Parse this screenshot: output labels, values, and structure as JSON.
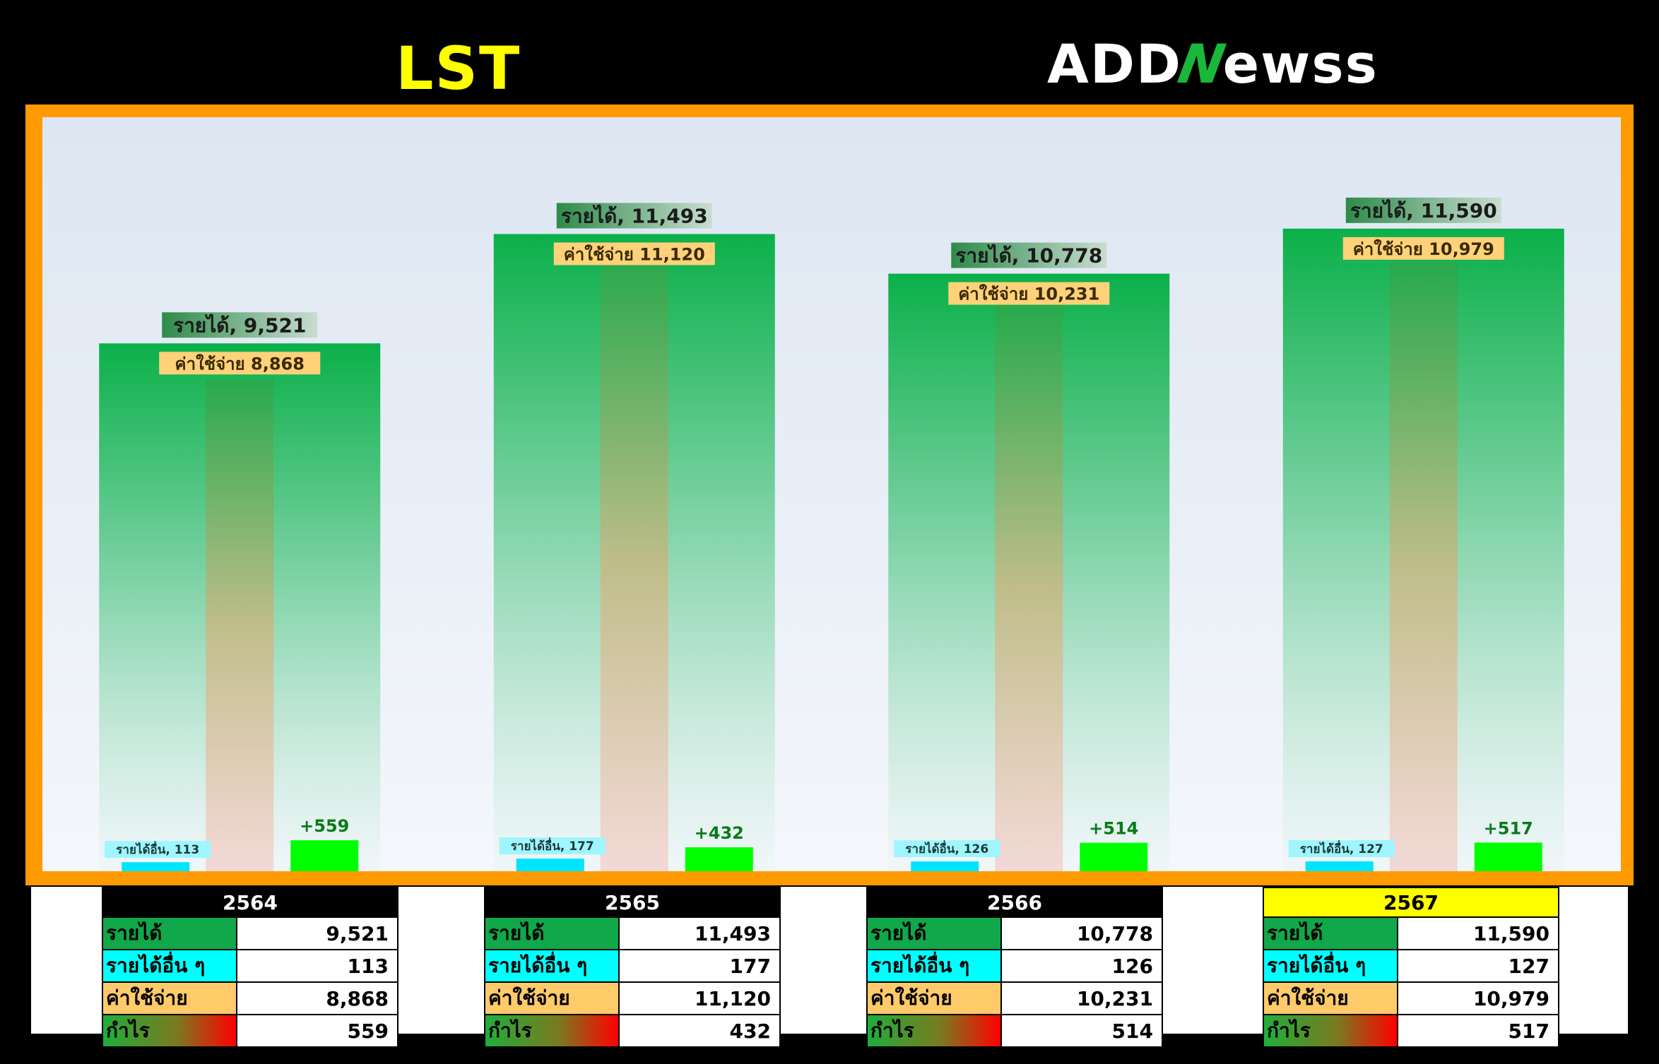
{
  "title": "LST",
  "logo": {
    "prefix": "ADD",
    "n": "N",
    "suffix": "ewss"
  },
  "colors": {
    "title": "#ffff00",
    "frame": "#ff9a00",
    "revenue": "#10a84a",
    "other_income": "#00ffff",
    "expense": "#ffca6a",
    "profit": "#00ff00",
    "highlight_year": "#ffff00"
  },
  "chart_data": {
    "type": "bar",
    "categories": [
      "2564",
      "2565",
      "2566",
      "2567"
    ],
    "series": [
      {
        "name": "รายได้",
        "values": [
          9521,
          11493,
          10778,
          11590
        ]
      },
      {
        "name": "รายได้อื่น ๆ",
        "values": [
          113,
          177,
          126,
          127
        ]
      },
      {
        "name": "ค่าใช้จ่าย",
        "values": [
          8868,
          11120,
          10231,
          10979
        ]
      },
      {
        "name": "กำไร",
        "values": [
          559,
          432,
          514,
          517
        ]
      }
    ],
    "labels": {
      "revenue": [
        "รายได้, 9,521",
        "รายได้, 11,493",
        "รายได้, 10,778",
        "รายได้, 11,590"
      ],
      "other": [
        "รายได้อื่น, 113",
        "รายได้อื่น, 177",
        "รายได้อื่น, 126",
        "รายได้อื่น, 127"
      ],
      "expense": [
        "ค่าใช้จ่าย 8,868",
        "ค่าใช้จ่าย 11,120",
        "ค่าใช้จ่าย 10,231",
        "ค่าใช้จ่าย 10,979"
      ],
      "profit": [
        "+559",
        "+432",
        "+514",
        "+517"
      ]
    },
    "ylim": [
      0,
      13600
    ],
    "grid": false
  },
  "tables": [
    {
      "year": "2564",
      "highlight": false,
      "rows": [
        {
          "label": "รายได้",
          "value": "9,521"
        },
        {
          "label": "รายได้อื่น ๆ",
          "value": "113"
        },
        {
          "label": "ค่าใช้จ่าย",
          "value": "8,868"
        },
        {
          "label": "กำไร",
          "value": "559"
        }
      ]
    },
    {
      "year": "2565",
      "highlight": false,
      "rows": [
        {
          "label": "รายได้",
          "value": "11,493"
        },
        {
          "label": "รายได้อื่น ๆ",
          "value": "177"
        },
        {
          "label": "ค่าใช้จ่าย",
          "value": "11,120"
        },
        {
          "label": "กำไร",
          "value": "432"
        }
      ]
    },
    {
      "year": "2566",
      "highlight": false,
      "rows": [
        {
          "label": "รายได้",
          "value": "10,778"
        },
        {
          "label": "รายได้อื่น ๆ",
          "value": "126"
        },
        {
          "label": "ค่าใช้จ่าย",
          "value": "10,231"
        },
        {
          "label": "กำไร",
          "value": "514"
        }
      ]
    },
    {
      "year": "2567",
      "highlight": true,
      "rows": [
        {
          "label": "รายได้",
          "value": "11,590"
        },
        {
          "label": "รายได้อื่น ๆ",
          "value": "127"
        },
        {
          "label": "ค่าใช้จ่าย",
          "value": "10,979"
        },
        {
          "label": "กำไร",
          "value": "517"
        }
      ]
    }
  ]
}
